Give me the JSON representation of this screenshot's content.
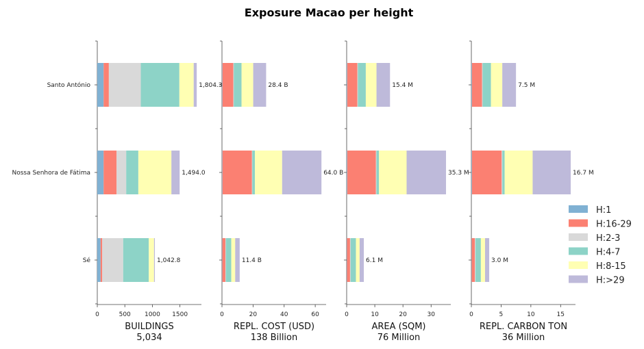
{
  "chart_data": {
    "type": "bar",
    "orientation": "horizontal",
    "stacked": true,
    "title": "Exposure Macao per height",
    "categories": [
      "Santo António",
      "Nossa Senhora de Fátima",
      "Sé"
    ],
    "series_names": [
      "H:1",
      "H:16-29",
      "H:2-3",
      "H:4-7",
      "H:8-15",
      "H:>29"
    ],
    "colors": [
      "#80b1d3",
      "#fb8072",
      "#d9d9d9",
      "#8dd3c7",
      "#ffffb3",
      "#bebada"
    ],
    "legend_position": "right",
    "panels": [
      {
        "xlabel": "BUILDINGS",
        "total_label": "5,034",
        "xlim": [
          0,
          1890
        ],
        "xticks": [
          0,
          500,
          1000,
          1500
        ],
        "xtick_labels": [
          "0",
          "500",
          "1000",
          "1500"
        ],
        "bars": [
          {
            "category": "Santo António",
            "values": [
              115,
              95,
              580,
              700,
              260,
              55
            ],
            "label": "1,804.3"
          },
          {
            "category": "Nossa Senhora de Fátima",
            "values": [
              115,
              235,
              175,
              220,
              600,
              150
            ],
            "label": "1,494.0"
          },
          {
            "category": "Sé",
            "values": [
              60,
              30,
              380,
              465,
              95,
              15
            ],
            "label": "1,042.8"
          }
        ]
      },
      {
        "xlabel": "REPL. COST (USD)",
        "total_label": "138 Billion",
        "xlim": [
          0,
          67
        ],
        "xticks": [
          0,
          20,
          40,
          60
        ],
        "xtick_labels": [
          "0",
          "20",
          "40",
          "60"
        ],
        "bars": [
          {
            "category": "Santo António",
            "values": [
              0.3,
              7.0,
              0.3,
              5.0,
              7.5,
              8.3
            ],
            "label": "28.4 B"
          },
          {
            "category": "Nossa Senhora de Fátima",
            "values": [
              0.3,
              19.0,
              0.2,
              1.7,
              17.5,
              25.3
            ],
            "label": "64.0 B"
          },
          {
            "category": "Sé",
            "values": [
              0.2,
              2.0,
              0.3,
              3.5,
              2.5,
              2.9
            ],
            "label": "11.4 B"
          }
        ]
      },
      {
        "xlabel": "AREA (SQM)",
        "total_label": "76 Million",
        "xlim": [
          0,
          37
        ],
        "xticks": [
          0,
          10,
          20,
          30
        ],
        "xtick_labels": [
          "0",
          "10",
          "20",
          "30"
        ],
        "bars": [
          {
            "category": "Santo António",
            "values": [
              0.2,
              3.6,
              0.2,
              2.8,
              3.8,
              4.8
            ],
            "label": "15.4 M"
          },
          {
            "category": "Nossa Senhora de Fátima",
            "values": [
              0.2,
              10.2,
              0.2,
              0.9,
              9.8,
              14.0
            ],
            "label": "35.3 M"
          },
          {
            "category": "Sé",
            "values": [
              0.1,
              1.1,
              0.2,
              1.9,
              1.3,
              1.5
            ],
            "label": "6.1 M"
          }
        ]
      },
      {
        "xlabel": "REPL. CARBON TON",
        "total_label": "36 Million",
        "xlim": [
          0,
          17.5
        ],
        "xticks": [
          0,
          5,
          10,
          15
        ],
        "xtick_labels": [
          "0",
          "5",
          "10",
          "15"
        ],
        "bars": [
          {
            "category": "Santo António",
            "values": [
              0.1,
              1.7,
              0.1,
              1.4,
              1.9,
              2.3
            ],
            "label": "7.5 M"
          },
          {
            "category": "Nossa Senhora de Fátima",
            "values": [
              0.1,
              5.0,
              0.1,
              0.4,
              4.7,
              6.4
            ],
            "label": "16.7 M"
          },
          {
            "category": "Sé",
            "values": [
              0.05,
              0.55,
              0.1,
              0.9,
              0.7,
              0.7
            ],
            "label": "3.0 M"
          }
        ]
      }
    ]
  }
}
